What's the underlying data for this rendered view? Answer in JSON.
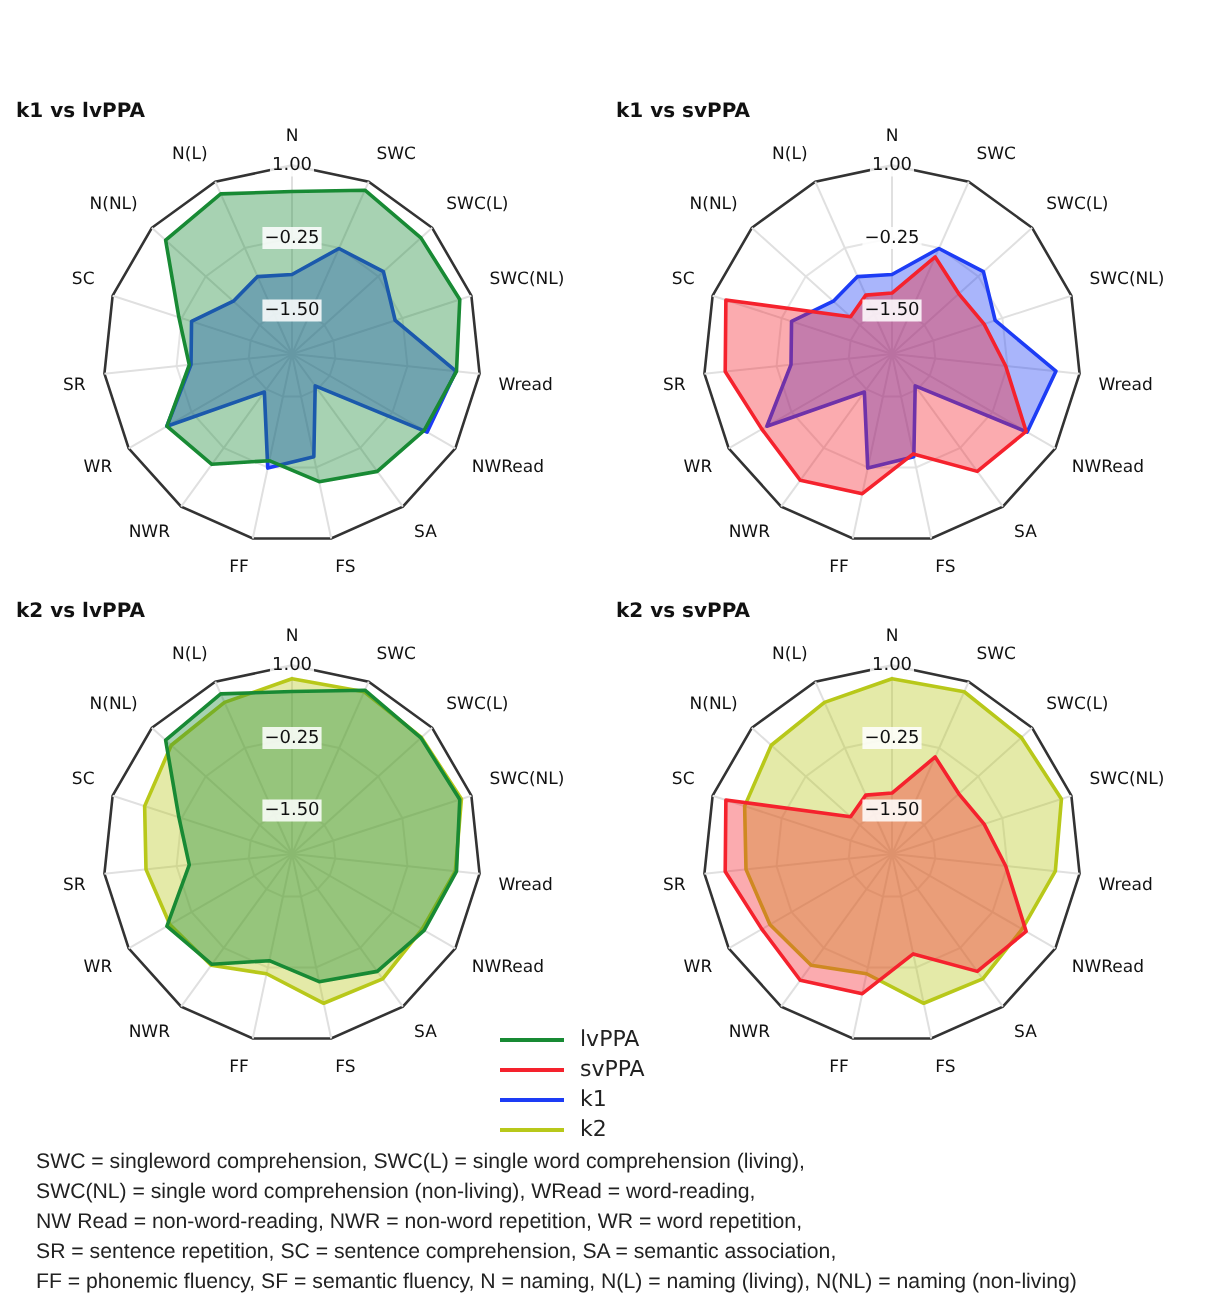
{
  "chart_data": [
    {
      "type": "radar",
      "title": "k1 vs lvPPA",
      "categories": [
        "N",
        "SWC",
        "SWC(L)",
        "SWC(NL)",
        "Wread",
        "NWRead",
        "SA",
        "FS",
        "FF",
        "NWR",
        "WR",
        "SR",
        "SC",
        "N(NL)",
        "N(L)"
      ],
      "ylim": [
        -2.25,
        1
      ],
      "yticks": [
        {
          "value": -1.5,
          "label": "−1.50"
        },
        {
          "value": -0.25,
          "label": "−0.25"
        },
        {
          "value": 1,
          "label": "1.00"
        }
      ],
      "grid": true,
      "legend": "bottom",
      "series": [
        {
          "name": "lvPPA",
          "color": "#188a34",
          "values": [
            0.55,
            0.84,
            0.74,
            0.79,
            0.6,
            0.38,
            0.25,
            0.0,
            -0.37,
            0.1,
            0.24,
            -0.47,
            -0.2,
            0.68,
            0.77
          ]
        },
        {
          "name": "k1",
          "color": "#1d3cf5",
          "values": [
            -0.88,
            -0.26,
            -0.13,
            -0.38,
            0.59,
            0.44,
            -1.57,
            -0.44,
            -0.24,
            -1.44,
            0.24,
            -0.5,
            -0.43,
            -0.89,
            -0.79
          ]
        }
      ]
    },
    {
      "type": "radar",
      "title": "k1 vs svPPA",
      "categories": [
        "N",
        "SWC",
        "SWC(L)",
        "SWC(NL)",
        "Wread",
        "NWRead",
        "SA",
        "FS",
        "FF",
        "NWR",
        "WR",
        "SR",
        "SC",
        "N(NL)",
        "N(L)"
      ],
      "ylim": [
        -2.25,
        1
      ],
      "yticks": [
        {
          "value": -1.5,
          "label": "−1.50"
        },
        {
          "value": -0.25,
          "label": "−0.25"
        },
        {
          "value": 1,
          "label": "1.00"
        }
      ],
      "grid": true,
      "legend": "bottom",
      "series": [
        {
          "name": "svPPA",
          "color": "#f5222d",
          "values": [
            -1.2,
            -0.42,
            -0.7,
            -0.58,
            -0.28,
            0.42,
            0.25,
            -0.49,
            0.21,
            0.44,
            0.34,
            0.64,
            0.76,
            -1.29,
            -1.14
          ]
        },
        {
          "name": "k1",
          "color": "#1d3cf5",
          "values": [
            -0.88,
            -0.26,
            -0.13,
            -0.38,
            0.59,
            0.44,
            -1.57,
            -0.44,
            -0.24,
            -1.44,
            0.24,
            -0.5,
            -0.43,
            -0.89,
            -0.79
          ]
        }
      ]
    },
    {
      "type": "radar",
      "title": "k2 vs lvPPA",
      "categories": [
        "N",
        "SWC",
        "SWC(L)",
        "SWC(NL)",
        "Wread",
        "NWRead",
        "SA",
        "FS",
        "FF",
        "NWR",
        "WR",
        "SR",
        "SC",
        "N(NL)",
        "N(L)"
      ],
      "ylim": [
        -2.25,
        1
      ],
      "yticks": [
        {
          "value": -1.5,
          "label": "−1.50"
        },
        {
          "value": -0.25,
          "label": "−0.25"
        },
        {
          "value": 1,
          "label": "1.00"
        }
      ],
      "grid": true,
      "legend": "bottom",
      "series": [
        {
          "name": "lvPPA",
          "color": "#188a34",
          "values": [
            0.55,
            0.84,
            0.74,
            0.79,
            0.6,
            0.38,
            0.25,
            0.0,
            -0.37,
            0.1,
            0.24,
            -0.47,
            -0.2,
            0.68,
            0.77
          ]
        },
        {
          "name": "k2",
          "color": "#b8c81a",
          "values": [
            0.77,
            0.81,
            0.75,
            0.82,
            0.58,
            0.34,
            0.41,
            0.38,
            -0.14,
            0.12,
            0.18,
            0.28,
            0.42,
            0.55,
            0.61
          ]
        }
      ]
    },
    {
      "type": "radar",
      "title": "k2 vs svPPA",
      "categories": [
        "N",
        "SWC",
        "SWC(L)",
        "SWC(NL)",
        "Wread",
        "NWRead",
        "SA",
        "FS",
        "FF",
        "NWR",
        "WR",
        "SR",
        "SC",
        "N(NL)",
        "N(L)"
      ],
      "ylim": [
        -2.25,
        1
      ],
      "yticks": [
        {
          "value": -1.5,
          "label": "−1.50"
        },
        {
          "value": -0.25,
          "label": "−0.25"
        },
        {
          "value": 1,
          "label": "1.00"
        }
      ],
      "grid": true,
      "legend": "bottom",
      "series": [
        {
          "name": "svPPA",
          "color": "#f5222d",
          "values": [
            -1.2,
            -0.42,
            -0.7,
            -0.58,
            -0.28,
            0.42,
            0.25,
            -0.49,
            0.21,
            0.44,
            0.34,
            0.64,
            0.76,
            -1.29,
            -1.14
          ]
        },
        {
          "name": "k2",
          "color": "#b8c81a",
          "values": [
            0.77,
            0.81,
            0.75,
            0.82,
            0.58,
            0.34,
            0.41,
            0.38,
            -0.14,
            0.12,
            0.18,
            0.28,
            0.42,
            0.55,
            0.61
          ]
        }
      ],
      "annotations": [
        "SWC = singleword comprehension, SWC(L) = single word comprehension (living),",
        "SWC(NL) = single word comprehension (non-living), WRead = word-reading,",
        "NW Read = non-word-reading, NWR = non-word repetition, WR = word repetition,",
        "SR = sentence repetition, SC = sentence comprehension, SA = semantic association,",
        "FF = phonemic fluency, SF = semantic fluency, N = naming, N(L) = naming (living), N(NL) = naming (non-living)"
      ]
    }
  ]
}
